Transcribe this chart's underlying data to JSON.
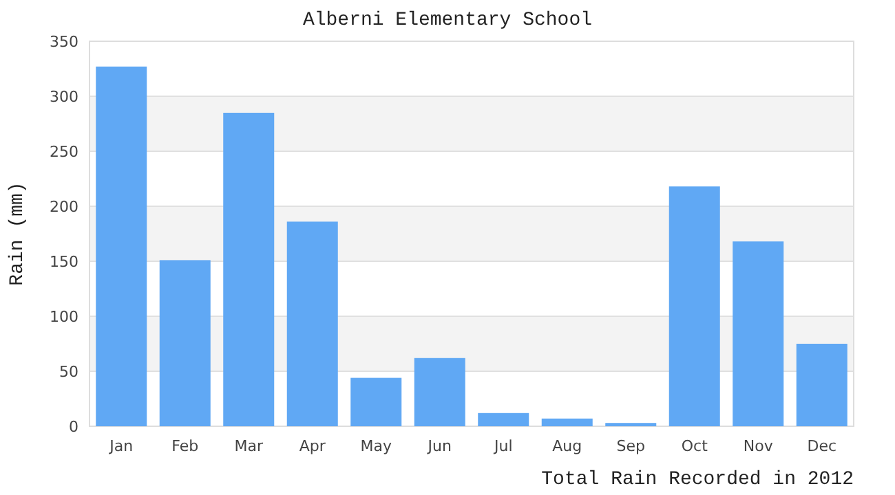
{
  "chart_data": {
    "type": "bar",
    "title": "Alberni Elementary School",
    "xlabel": "Total Rain Recorded in 2012",
    "ylabel": "Rain (mm)",
    "categories": [
      "Jan",
      "Feb",
      "Mar",
      "Apr",
      "May",
      "Jun",
      "Jul",
      "Aug",
      "Sep",
      "Oct",
      "Nov",
      "Dec"
    ],
    "values": [
      327,
      151,
      285,
      186,
      44,
      62,
      12,
      7,
      3,
      218,
      168,
      75
    ],
    "color": "#60a8f4",
    "ylim": [
      0,
      350
    ],
    "yticks": [
      0,
      50,
      100,
      150,
      200,
      250,
      300,
      350
    ],
    "grid": "y"
  }
}
